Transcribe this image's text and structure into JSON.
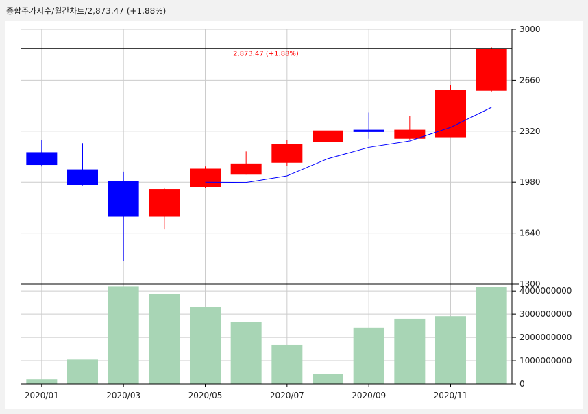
{
  "header": {
    "title": "종합주가지수/월간차트",
    "price_text": "/2,873.47",
    "change_text": " (+1.88%)"
  },
  "last_price_label": "2,873.47 (+1.88%)",
  "colors": {
    "up": "#ff0000",
    "down": "#0000ff",
    "ma_line": "#0000ff",
    "volume": "#a8d5b5",
    "grid": "#cccccc",
    "last_price_text": "#ff0000"
  },
  "chart_data": [
    {
      "type": "candlestick",
      "title": "종합주가지수/월간차트",
      "x": [
        "2020/01",
        "2020/02",
        "2020/03",
        "2020/04",
        "2020/05",
        "2020/06",
        "2020/07",
        "2020/08",
        "2020/09",
        "2020/10",
        "2020/11",
        "2020/12"
      ],
      "xtick_labels": [
        "2020/01",
        "2020/03",
        "2020/05",
        "2020/07",
        "2020/09",
        "2020/11"
      ],
      "open": [
        2180,
        2065,
        1990,
        1750,
        1945,
        2030,
        2110,
        2250,
        2330,
        2270,
        2280,
        2590
      ],
      "close": [
        2095,
        1960,
        1750,
        1935,
        2070,
        2105,
        2235,
        2325,
        2315,
        2330,
        2595,
        2873.47
      ],
      "high": [
        2260,
        2240,
        2050,
        1940,
        2085,
        2185,
        2260,
        2445,
        2445,
        2420,
        2630,
        2880
      ],
      "low": [
        2085,
        1955,
        1455,
        1665,
        1940,
        2030,
        2090,
        2230,
        2270,
        2265,
        2280,
        2585
      ],
      "moving_average": [
        null,
        null,
        null,
        null,
        1980,
        1978,
        2022,
        2137,
        2212,
        2255,
        2346,
        2479
      ],
      "ylim": [
        1300,
        3000
      ],
      "ytick_labels": [
        "3000",
        "2660",
        "2320",
        "1980",
        "1640",
        "1300"
      ],
      "reference_price": 2873.47,
      "grid": true
    },
    {
      "type": "bar",
      "x": [
        "2020/01",
        "2020/02",
        "2020/03",
        "2020/04",
        "2020/05",
        "2020/06",
        "2020/07",
        "2020/08",
        "2020/09",
        "2020/10",
        "2020/11",
        "2020/12"
      ],
      "values": [
        200000000,
        1050000000,
        4200000000,
        3870000000,
        3300000000,
        2680000000,
        1680000000,
        430000000,
        2420000000,
        2800000000,
        2910000000,
        4180000000
      ],
      "ylim": [
        0,
        4300000000
      ],
      "ytick_labels": [
        "4000000000",
        "3000000000",
        "2000000000",
        "1000000000",
        "0"
      ],
      "grid": true
    }
  ]
}
